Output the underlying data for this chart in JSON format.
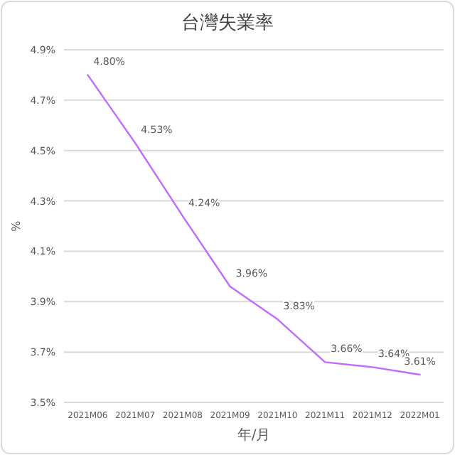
{
  "chart_data": {
    "type": "line",
    "title": "台灣失業率",
    "xlabel": "年/月",
    "ylabel": "%",
    "categories": [
      "2021M06",
      "2021M07",
      "2021M08",
      "2021M09",
      "2021M10",
      "2021M11",
      "2021M12",
      "2022M01"
    ],
    "series": [
      {
        "color": "#bf6bff",
        "values": [
          4.8,
          4.53,
          4.24,
          3.96,
          3.83,
          3.66,
          3.64,
          3.61
        ],
        "value_labels": [
          "4.80%",
          "4.53%",
          "4.24%",
          "3.96%",
          "3.83%",
          "3.66%",
          "3.64%",
          "3.61%"
        ]
      }
    ],
    "ylim": [
      3.5,
      4.9
    ],
    "yticks": [
      {
        "value": 3.5,
        "label": "3.5%"
      },
      {
        "value": 3.7,
        "label": "3.7%"
      },
      {
        "value": 3.9,
        "label": "3.9%"
      },
      {
        "value": 4.1,
        "label": "4.1%"
      },
      {
        "value": 4.3,
        "label": "4.3%"
      },
      {
        "value": 4.5,
        "label": "4.5%"
      },
      {
        "value": 4.7,
        "label": "4.7%"
      },
      {
        "value": 4.9,
        "label": "4.9%"
      }
    ],
    "grid": "y"
  }
}
